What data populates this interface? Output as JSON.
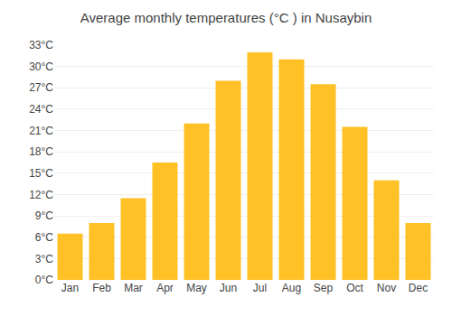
{
  "chart_data": {
    "type": "bar",
    "title": "Average monthly temperatures (°C ) in Nusaybin",
    "categories": [
      "Jan",
      "Feb",
      "Mar",
      "Apr",
      "May",
      "Jun",
      "Jul",
      "Aug",
      "Sep",
      "Oct",
      "Nov",
      "Dec"
    ],
    "values": [
      6.5,
      8.0,
      11.5,
      16.5,
      22.0,
      28.0,
      32.0,
      31.0,
      27.5,
      21.5,
      14.0,
      8.0
    ],
    "color": "#FFC125",
    "ylim": [
      0,
      33
    ],
    "yticks": [
      {
        "value": 0,
        "label": "0°C"
      },
      {
        "value": 3,
        "label": "3°C"
      },
      {
        "value": 6,
        "label": "6°C"
      },
      {
        "value": 9,
        "label": "9°C"
      },
      {
        "value": 12,
        "label": "12°C"
      },
      {
        "value": 15,
        "label": "15°C"
      },
      {
        "value": 18,
        "label": "18°C"
      },
      {
        "value": 21,
        "label": "21°C"
      },
      {
        "value": 24,
        "label": "24°C"
      },
      {
        "value": 27,
        "label": "27°C"
      },
      {
        "value": 30,
        "label": "30°C"
      },
      {
        "value": 33,
        "label": "33°C"
      }
    ],
    "grid": true
  }
}
